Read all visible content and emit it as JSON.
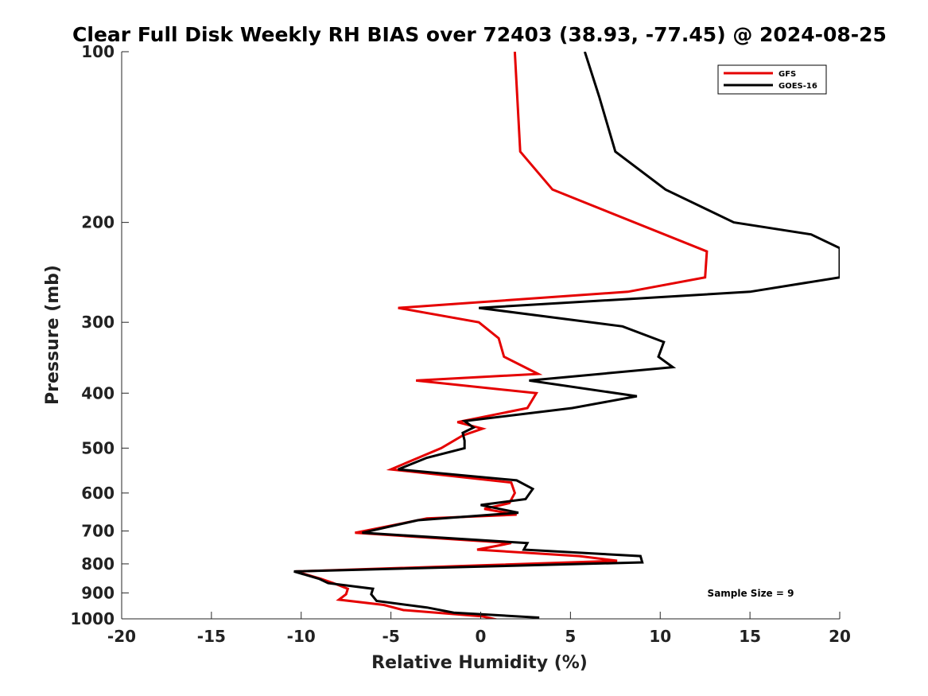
{
  "chart_data": {
    "type": "line",
    "title": "Clear Full Disk Weekly RH BIAS over 72403 (38.93, -77.45) @ 2024-08-25",
    "xlabel": "Relative Humidity (%)",
    "ylabel": "Pressure (mb)",
    "xlim": [
      -20,
      20
    ],
    "ylim": [
      100,
      1000
    ],
    "y_scale": "log",
    "y_reversed": true,
    "grid": false,
    "legend_position": "top-right",
    "xticks": [
      -20,
      -15,
      -10,
      -5,
      0,
      5,
      10,
      15,
      20
    ],
    "yticks": [
      100,
      200,
      300,
      400,
      500,
      600,
      700,
      800,
      900,
      1000
    ],
    "series": [
      {
        "name": "GFS",
        "color": "#e50000",
        "points": [
          [
            1.9,
            100
          ],
          [
            2.2,
            150
          ],
          [
            4.0,
            175
          ],
          [
            12.6,
            225
          ],
          [
            12.5,
            250
          ],
          [
            8.2,
            265
          ],
          [
            -4.6,
            283
          ],
          [
            -0.1,
            300
          ],
          [
            1.0,
            320
          ],
          [
            1.3,
            345
          ],
          [
            3.2,
            370
          ],
          [
            -3.6,
            380
          ],
          [
            3.1,
            400
          ],
          [
            2.6,
            425
          ],
          [
            -1.3,
            450
          ],
          [
            0.1,
            462
          ],
          [
            -1.0,
            475
          ],
          [
            -2.2,
            500
          ],
          [
            -5.0,
            545
          ],
          [
            1.7,
            575
          ],
          [
            1.9,
            600
          ],
          [
            1.6,
            625
          ],
          [
            0.2,
            640
          ],
          [
            2.0,
            655
          ],
          [
            -3.0,
            665
          ],
          [
            -4.5,
            680
          ],
          [
            -7.0,
            705
          ],
          [
            1.7,
            735
          ],
          [
            -0.2,
            755
          ],
          [
            5.5,
            775
          ],
          [
            7.6,
            790
          ],
          [
            0.0,
            805
          ],
          [
            -10.3,
            825
          ],
          [
            -8.9,
            850
          ],
          [
            -8.2,
            865
          ],
          [
            -7.4,
            885
          ],
          [
            -7.5,
            905
          ],
          [
            -7.9,
            925
          ],
          [
            -5.4,
            945
          ],
          [
            -4.3,
            965
          ],
          [
            0.1,
            990
          ],
          [
            1.0,
            1005
          ]
        ]
      },
      {
        "name": "GOES-16",
        "color": "#000000",
        "points": [
          [
            5.8,
            100
          ],
          [
            6.6,
            120
          ],
          [
            7.5,
            150
          ],
          [
            10.3,
            175
          ],
          [
            14.1,
            200
          ],
          [
            18.4,
            210
          ],
          [
            20.0,
            222
          ],
          [
            20.0,
            250
          ],
          [
            15.0,
            265
          ],
          [
            -0.1,
            283
          ],
          [
            7.9,
            305
          ],
          [
            10.2,
            325
          ],
          [
            9.9,
            345
          ],
          [
            10.7,
            360
          ],
          [
            2.7,
            380
          ],
          [
            8.7,
            405
          ],
          [
            5.1,
            425
          ],
          [
            -0.9,
            448
          ],
          [
            -0.4,
            460
          ],
          [
            -1.0,
            470
          ],
          [
            -0.9,
            485
          ],
          [
            -0.9,
            500
          ],
          [
            -3.0,
            520
          ],
          [
            -4.6,
            545
          ],
          [
            2.0,
            570
          ],
          [
            2.9,
            590
          ],
          [
            2.5,
            615
          ],
          [
            0.0,
            630
          ],
          [
            2.1,
            650
          ],
          [
            -3.5,
            670
          ],
          [
            -6.6,
            705
          ],
          [
            2.6,
            735
          ],
          [
            2.4,
            755
          ],
          [
            8.9,
            775
          ],
          [
            9.0,
            795
          ],
          [
            -10.4,
            825
          ],
          [
            -9.0,
            850
          ],
          [
            -8.5,
            865
          ],
          [
            -6.0,
            885
          ],
          [
            -6.1,
            905
          ],
          [
            -5.8,
            930
          ],
          [
            -3.0,
            955
          ],
          [
            -1.5,
            975
          ],
          [
            3.2,
            995
          ],
          [
            3.2,
            1005
          ]
        ]
      }
    ],
    "annotations": [
      "Sample Size = 9"
    ]
  }
}
